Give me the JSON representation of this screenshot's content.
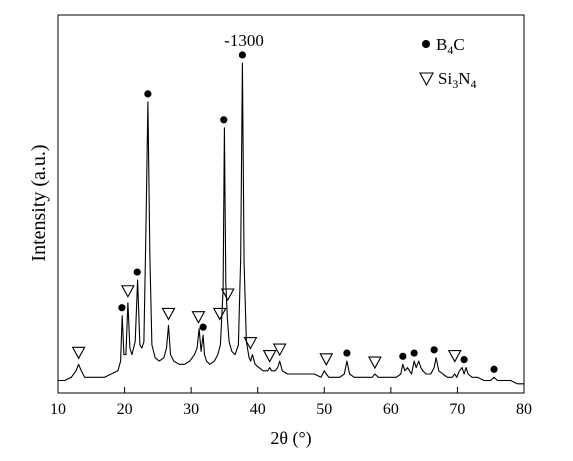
{
  "chart_data": {
    "type": "line",
    "title": "",
    "xlabel": "2θ (°)",
    "ylabel": "Intensity (a.u.)",
    "xlim": [
      10,
      80
    ],
    "ylim": [
      0,
      1
    ],
    "xticks": [
      10,
      20,
      30,
      40,
      50,
      60,
      70,
      80
    ],
    "yticks_shown": false,
    "grid": false,
    "legend": {
      "placement": "top-right",
      "entries": [
        {
          "marker": "filled-circle",
          "base": "B",
          "sub": "4",
          "rest": "C"
        },
        {
          "marker": "open-down-triangle",
          "parts": [
            [
              "Si",
              false
            ],
            [
              "3",
              true
            ],
            [
              "N",
              false
            ],
            [
              "4",
              true
            ]
          ]
        }
      ]
    },
    "annotation": {
      "text": "-1300",
      "x": 37.7
    },
    "series": [
      {
        "x": [
          10,
          11,
          12,
          12.7,
          13.1,
          13.5,
          14,
          15,
          16,
          17,
          18,
          19,
          19.4,
          19.65,
          19.9,
          20.2,
          20.5,
          20.8,
          21.1,
          21.6,
          21.95,
          22.3,
          22.6,
          22.9,
          23.2,
          23.5,
          23.8,
          24.1,
          24.6,
          25.2,
          25.9,
          26.3,
          26.6,
          26.9,
          27.4,
          28.2,
          29.0,
          29.8,
          30.5,
          30.9,
          31.2,
          31.5,
          31.8,
          32.0,
          32.3,
          32.8,
          33.5,
          34.0,
          34.4,
          34.8,
          35.0,
          35.2,
          35.45,
          35.7,
          36.1,
          36.6,
          37.1,
          37.45,
          37.7,
          37.95,
          38.3,
          38.7,
          38.95,
          39.2,
          39.6,
          40.2,
          40.8,
          41.5,
          41.8,
          42.1,
          42.6,
          43.0,
          43.3,
          43.7,
          44.5,
          45.5,
          46.5,
          47.5,
          48.5,
          49.5,
          50.0,
          50.3,
          50.7,
          51.5,
          52.3,
          53.0,
          53.4,
          53.8,
          54.5,
          55.5,
          56.5,
          57.2,
          57.6,
          58.1,
          59,
          60,
          60.8,
          61.5,
          61.8,
          62.1,
          62.5,
          63.1,
          63.5,
          63.8,
          64.2,
          64.5,
          64.8,
          65.3,
          66.0,
          66.5,
          66.8,
          67.2,
          67.8,
          68.5,
          69.2,
          69.6,
          69.9,
          70.3,
          70.7,
          71.0,
          71.3,
          71.6,
          72.2,
          73.0,
          74.0,
          75.0,
          75.5,
          76.0,
          77,
          78,
          79,
          80
        ],
        "y": [
          0.02,
          0.02,
          0.03,
          0.05,
          0.07,
          0.05,
          0.03,
          0.03,
          0.03,
          0.03,
          0.04,
          0.05,
          0.08,
          0.22,
          0.1,
          0.1,
          0.26,
          0.12,
          0.1,
          0.14,
          0.33,
          0.13,
          0.12,
          0.14,
          0.48,
          0.88,
          0.4,
          0.13,
          0.09,
          0.08,
          0.09,
          0.12,
          0.19,
          0.1,
          0.08,
          0.07,
          0.07,
          0.08,
          0.1,
          0.12,
          0.18,
          0.11,
          0.16,
          0.1,
          0.08,
          0.07,
          0.08,
          0.1,
          0.13,
          0.3,
          0.8,
          0.32,
          0.21,
          0.14,
          0.11,
          0.1,
          0.13,
          0.4,
          1.0,
          0.38,
          0.14,
          0.09,
          0.08,
          0.1,
          0.07,
          0.06,
          0.05,
          0.05,
          0.06,
          0.05,
          0.05,
          0.06,
          0.08,
          0.05,
          0.04,
          0.04,
          0.04,
          0.04,
          0.04,
          0.03,
          0.05,
          0.04,
          0.03,
          0.03,
          0.03,
          0.04,
          0.08,
          0.04,
          0.03,
          0.03,
          0.03,
          0.03,
          0.04,
          0.03,
          0.03,
          0.03,
          0.03,
          0.04,
          0.07,
          0.05,
          0.06,
          0.04,
          0.08,
          0.06,
          0.08,
          0.06,
          0.05,
          0.04,
          0.04,
          0.06,
          0.09,
          0.05,
          0.04,
          0.03,
          0.03,
          0.04,
          0.03,
          0.05,
          0.06,
          0.04,
          0.06,
          0.04,
          0.03,
          0.03,
          0.02,
          0.02,
          0.03,
          0.02,
          0.02,
          0.02,
          0.01,
          0.01
        ]
      }
    ],
    "markers_B4C": [
      {
        "x": 19.6,
        "y": 0.22
      },
      {
        "x": 21.9,
        "y": 0.33
      },
      {
        "x": 23.5,
        "y": 0.88
      },
      {
        "x": 31.8,
        "y": 0.16
      },
      {
        "x": 34.9,
        "y": 0.8
      },
      {
        "x": 37.7,
        "y": 1.0
      },
      {
        "x": 53.4,
        "y": 0.08
      },
      {
        "x": 61.8,
        "y": 0.07
      },
      {
        "x": 63.5,
        "y": 0.08
      },
      {
        "x": 66.5,
        "y": 0.09
      },
      {
        "x": 71.0,
        "y": 0.06
      },
      {
        "x": 75.5,
        "y": 0.03
      }
    ],
    "markers_Si3N4": [
      {
        "x": 13.1,
        "y": 0.07
      },
      {
        "x": 20.5,
        "y": 0.26
      },
      {
        "x": 26.6,
        "y": 0.19
      },
      {
        "x": 31.1,
        "y": 0.18
      },
      {
        "x": 34.3,
        "y": 0.19
      },
      {
        "x": 35.5,
        "y": 0.25
      },
      {
        "x": 38.9,
        "y": 0.1
      },
      {
        "x": 41.8,
        "y": 0.06
      },
      {
        "x": 43.3,
        "y": 0.08
      },
      {
        "x": 50.3,
        "y": 0.05
      },
      {
        "x": 57.6,
        "y": 0.04
      },
      {
        "x": 69.6,
        "y": 0.06
      }
    ]
  }
}
